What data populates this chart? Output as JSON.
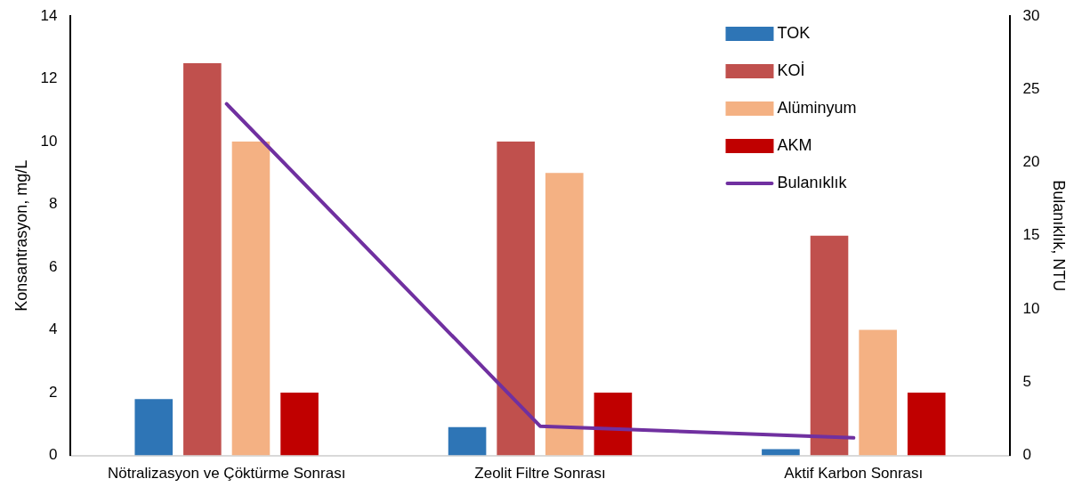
{
  "chart_data": {
    "type": "bar",
    "categories": [
      "Nötralizasyon ve Çöktürme Sonrası",
      "Zeolit Filtre Sonrası",
      "Aktif Karbon Sonrası"
    ],
    "ylabel": "Konsantrasyon, mg/L",
    "y2label": "Bulanıklık, NTU",
    "ylim": [
      0,
      14
    ],
    "yticks": [
      0,
      2,
      4,
      6,
      8,
      10,
      12,
      14
    ],
    "y2lim": [
      0,
      30
    ],
    "y2ticks": [
      0,
      5,
      10,
      15,
      20,
      25,
      30
    ],
    "grid": false,
    "legend": "top right",
    "series": [
      {
        "name": "TOK",
        "color": "#2e75b6",
        "values": [
          1.8,
          0.9,
          0.2
        ]
      },
      {
        "name": "KOİ",
        "color": "#c0504d",
        "values": [
          12.5,
          10,
          7
        ]
      },
      {
        "name": "Alüminyum",
        "color": "#f4b183",
        "values": [
          10,
          9,
          4
        ]
      },
      {
        "name": "AKM",
        "color": "#c00000",
        "values": [
          2,
          2,
          2
        ]
      },
      {
        "name": "Bulanıklık",
        "type": "line",
        "axis": "y2",
        "color": "#7030a0",
        "values": [
          24,
          2,
          1.2
        ]
      }
    ]
  }
}
